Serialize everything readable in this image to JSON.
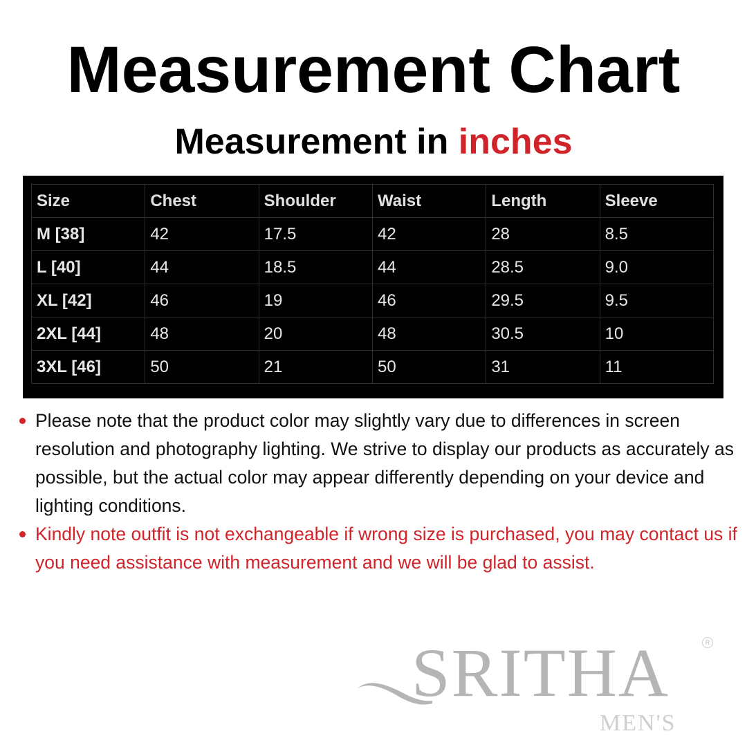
{
  "header": {
    "title": "Measurement Chart",
    "subtitle_prefix": "Measurement in ",
    "subtitle_accent": "inches",
    "accent_color": "#d1242a"
  },
  "table": {
    "columns": [
      "Size",
      "Chest",
      "Shoulder",
      "Waist",
      "Length",
      "Sleeve"
    ],
    "rows": [
      [
        "M [38]",
        "42",
        "17.5",
        "42",
        "28",
        "8.5"
      ],
      [
        "L [40]",
        "44",
        "18.5",
        "44",
        "28.5",
        "9.0"
      ],
      [
        "XL [42]",
        "46",
        "19",
        "46",
        "29.5",
        "9.5"
      ],
      [
        "2XL [44]",
        "48",
        "20",
        "48",
        "30.5",
        "10"
      ],
      [
        "3XL [46]",
        "50",
        "21",
        "50",
        "31",
        "11"
      ]
    ]
  },
  "notes": [
    "Please note that the product color may slightly vary due to differences in screen resolution and photography lighting. We strive to display our products as accurately as possible, but the actual color may appear differently depending on your device and lighting conditions.",
    "Kindly note outfit is not exchangeable if wrong size is purchased, you may contact us if you need assistance with measurement and we will be glad to assist."
  ],
  "logo": {
    "word": "SRITHA",
    "sub": "MEN'S",
    "registered": "R"
  }
}
